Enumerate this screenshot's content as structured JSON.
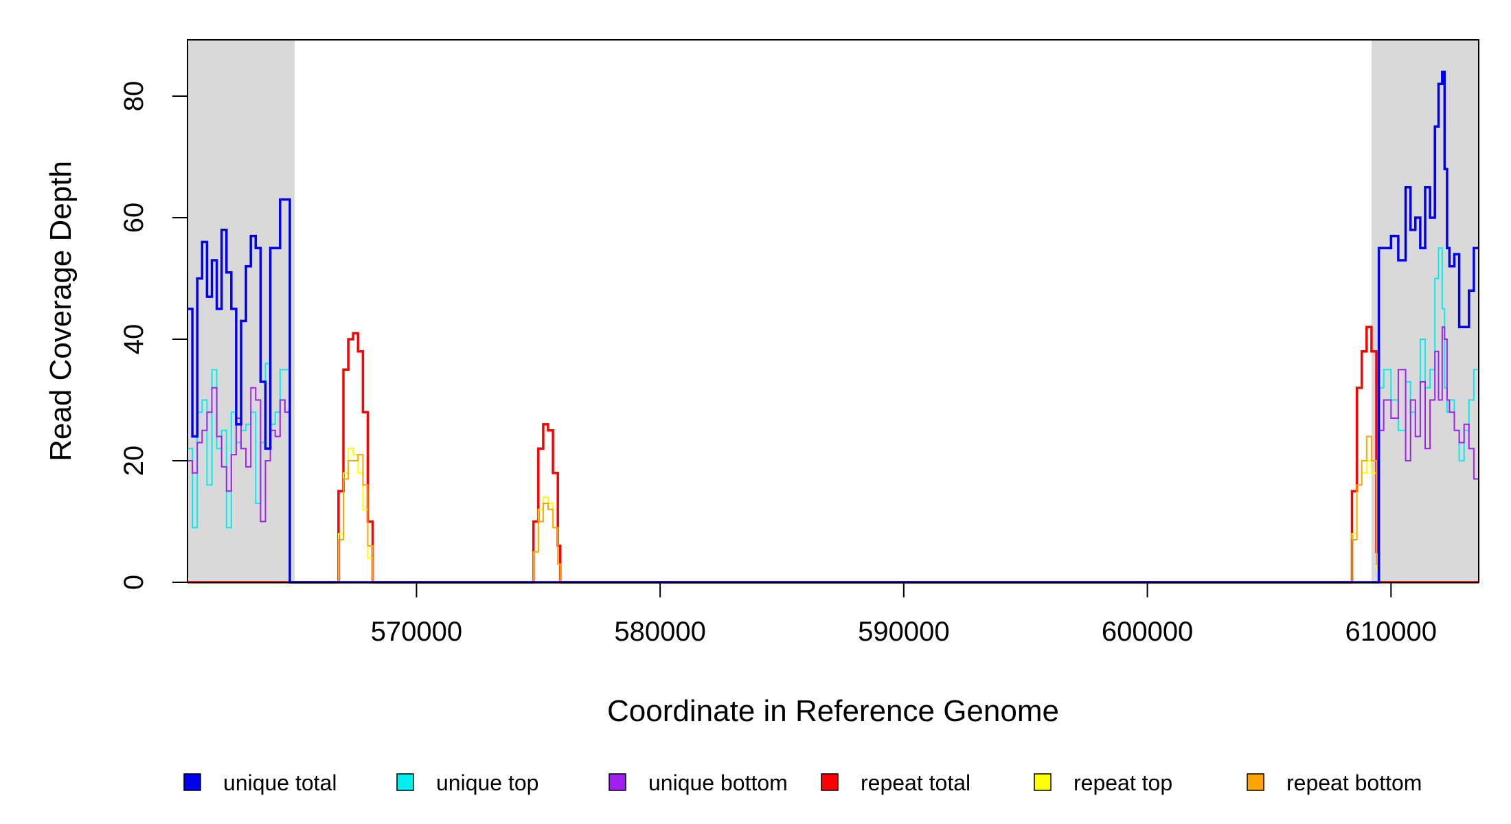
{
  "chart_data": {
    "type": "line",
    "title": "",
    "xlabel": "Coordinate in Reference Genome",
    "ylabel": "Read Coverage Depth",
    "xlim": [
      560600,
      613600
    ],
    "ylim": [
      0,
      89
    ],
    "x_ticks": [
      570000,
      580000,
      590000,
      600000,
      610000
    ],
    "x_tick_labels": [
      "570000",
      "580000",
      "590000",
      "600000",
      "610000"
    ],
    "y_ticks": [
      0,
      20,
      40,
      60,
      80
    ],
    "y_tick_labels": [
      "0",
      "20",
      "40",
      "60",
      "80"
    ],
    "grid": false,
    "legend_position": "bottom",
    "shaded_regions": [
      {
        "x0": 560600,
        "x1": 565000,
        "color": "#d9d9d9"
      },
      {
        "x0": 609200,
        "x1": 613600,
        "color": "#d9d9d9"
      }
    ],
    "series": [
      {
        "name": "unique total",
        "color": "#0000ee",
        "stroke": 3.5,
        "x": [
          560600,
          560800,
          561000,
          561200,
          561400,
          561600,
          561800,
          562000,
          562200,
          562400,
          562600,
          562800,
          563000,
          563200,
          563400,
          563600,
          563800,
          564000,
          564200,
          564400,
          564600,
          564800,
          565000,
          565100,
          609300,
          609500,
          609700,
          610000,
          610300,
          610600,
          610800,
          611000,
          611200,
          611400,
          611600,
          611800,
          611950,
          612100,
          612200,
          612300,
          612400,
          612600,
          612800,
          613000,
          613200,
          613400,
          613600
        ],
        "y": [
          45,
          24,
          50,
          56,
          47,
          53,
          45,
          58,
          51,
          45,
          26,
          43,
          52,
          57,
          55,
          33,
          22,
          55,
          55,
          63,
          63,
          0,
          0,
          0,
          0,
          55,
          55,
          57,
          53,
          65,
          58,
          60,
          55,
          65,
          60,
          75,
          82,
          84,
          68,
          55,
          52,
          54,
          42,
          42,
          48,
          55,
          55
        ]
      },
      {
        "name": "unique top",
        "color": "#00eeee",
        "stroke": 2,
        "x": [
          560600,
          560800,
          561000,
          561200,
          561400,
          561600,
          561800,
          562000,
          562200,
          562400,
          562600,
          562800,
          563000,
          563200,
          563400,
          563600,
          563800,
          564000,
          564200,
          564400,
          564600,
          564800,
          565000,
          565100,
          609300,
          609500,
          609700,
          610000,
          610300,
          610600,
          610800,
          611000,
          611200,
          611400,
          611600,
          611800,
          611950,
          612100,
          612200,
          612300,
          612400,
          612600,
          612800,
          613000,
          613200,
          613400,
          613600
        ],
        "y": [
          22,
          9,
          28,
          30,
          16,
          35,
          22,
          25,
          9,
          28,
          23,
          25,
          26,
          28,
          13,
          23,
          36,
          26,
          28,
          35,
          35,
          0,
          0,
          0,
          0,
          32,
          35,
          30,
          25,
          33,
          28,
          24,
          40,
          32,
          35,
          50,
          55,
          45,
          32,
          28,
          30,
          25,
          20,
          25,
          30,
          35,
          37
        ]
      },
      {
        "name": "unique bottom",
        "color": "#a020f0",
        "stroke": 2,
        "x": [
          560600,
          560800,
          561000,
          561200,
          561400,
          561600,
          561800,
          562000,
          562200,
          562400,
          562600,
          562800,
          563000,
          563200,
          563400,
          563600,
          563800,
          564000,
          564200,
          564400,
          564600,
          564800,
          565000,
          565100,
          609300,
          609500,
          609700,
          610000,
          610300,
          610600,
          610800,
          611000,
          611200,
          611400,
          611600,
          611800,
          611950,
          612100,
          612200,
          612300,
          612400,
          612600,
          612800,
          613000,
          613200,
          613400,
          613600
        ],
        "y": [
          20,
          18,
          23,
          25,
          28,
          32,
          24,
          19,
          15,
          21,
          27,
          22,
          19,
          32,
          30,
          10,
          20,
          25,
          24,
          30,
          28,
          0,
          0,
          0,
          0,
          25,
          30,
          27,
          35,
          20,
          30,
          24,
          33,
          22,
          30,
          38,
          30,
          42,
          40,
          30,
          28,
          25,
          23,
          26,
          22,
          17,
          16
        ]
      },
      {
        "name": "repeat total",
        "color": "#ff0000",
        "stroke": 3.5,
        "x": [
          560600,
          566600,
          566800,
          567000,
          567200,
          567400,
          567600,
          567800,
          568000,
          568200,
          568300,
          568400,
          574600,
          574800,
          575000,
          575200,
          575400,
          575600,
          575800,
          575900,
          608200,
          608400,
          608600,
          608800,
          609000,
          609200,
          609400,
          609500,
          613600
        ],
        "y": [
          0,
          0,
          15,
          35,
          40,
          41,
          38,
          28,
          10,
          0,
          0,
          0,
          0,
          10,
          22,
          26,
          25,
          18,
          6,
          0,
          0,
          15,
          32,
          38,
          42,
          38,
          5,
          0,
          0
        ]
      },
      {
        "name": "repeat top",
        "color": "#ffff00",
        "stroke": 2,
        "x": [
          560600,
          566600,
          566800,
          567000,
          567200,
          567400,
          567600,
          567800,
          568000,
          568200,
          568300,
          568400,
          574600,
          574800,
          575000,
          575200,
          575400,
          575600,
          575800,
          575900,
          608200,
          608400,
          608600,
          608800,
          609000,
          609200,
          609400,
          609500,
          613600
        ],
        "y": [
          0,
          0,
          8,
          18,
          22,
          21,
          18,
          12,
          4,
          0,
          0,
          0,
          0,
          5,
          12,
          14,
          13,
          9,
          3,
          0,
          0,
          8,
          16,
          18,
          20,
          18,
          2,
          0,
          0
        ]
      },
      {
        "name": "repeat bottom",
        "color": "#ffa500",
        "stroke": 2,
        "x": [
          560600,
          566600,
          566800,
          567000,
          567200,
          567400,
          567600,
          567800,
          568000,
          568200,
          568300,
          568400,
          574600,
          574800,
          575000,
          575200,
          575400,
          575600,
          575800,
          575900,
          608200,
          608400,
          608600,
          608800,
          609000,
          609200,
          609400,
          609500,
          613600
        ],
        "y": [
          0,
          0,
          7,
          17,
          20,
          20,
          21,
          16,
          6,
          0,
          0,
          0,
          0,
          5,
          10,
          13,
          12,
          9,
          3,
          0,
          0,
          7,
          16,
          20,
          24,
          20,
          3,
          0,
          0
        ]
      }
    ]
  }
}
